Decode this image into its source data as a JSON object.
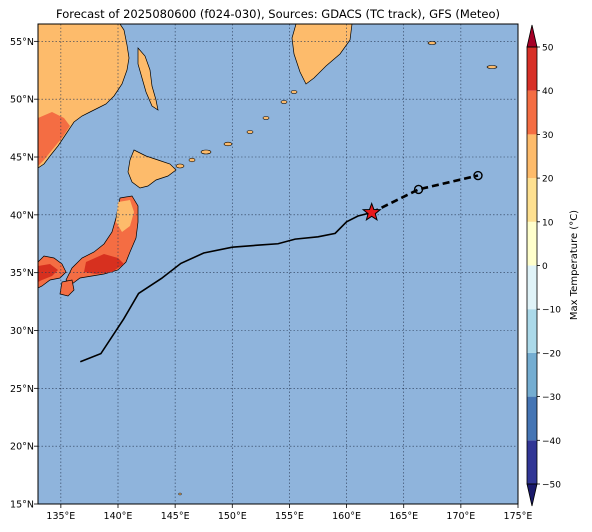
{
  "title": "Forecast of 2025080600 (f024-030), Sources: GDACS (TC track), GFS (Meteo)",
  "map": {
    "lon_range": [
      133,
      175
    ],
    "lat_range": [
      15,
      56.5
    ],
    "lon_ticks": [
      135,
      140,
      145,
      150,
      155,
      160,
      165,
      170,
      175
    ],
    "lon_tick_labels": [
      "135°E",
      "140°E",
      "145°E",
      "150°E",
      "155°E",
      "160°E",
      "165°E",
      "170°E",
      "175°E"
    ],
    "lat_ticks": [
      15,
      20,
      25,
      30,
      35,
      40,
      45,
      50,
      55
    ],
    "lat_tick_labels": [
      "15°N",
      "20°N",
      "25°N",
      "30°N",
      "35°N",
      "40°N",
      "45°N",
      "50°N",
      "55°N"
    ],
    "grid": true,
    "ocean_color": "#8fb4dc",
    "land_temperature_colors": {
      "0_10": "#ffffcc",
      "10_20": "#fdbb6b",
      "20_30": "#f46d43",
      "30_40": "#d7301f"
    }
  },
  "track": {
    "past": [
      [
        136.7,
        27.3
      ],
      [
        138.5,
        28.0
      ],
      [
        140.5,
        31.0
      ],
      [
        141.8,
        33.2
      ],
      [
        143.8,
        34.5
      ],
      [
        145.5,
        35.8
      ],
      [
        147.5,
        36.7
      ],
      [
        150.0,
        37.2
      ],
      [
        152.5,
        37.4
      ],
      [
        154.0,
        37.5
      ],
      [
        155.5,
        37.9
      ],
      [
        157.5,
        38.1
      ],
      [
        159.0,
        38.4
      ],
      [
        160.0,
        39.4
      ],
      [
        161.0,
        39.9
      ],
      [
        162.2,
        40.2
      ]
    ],
    "current": [
      162.2,
      40.2
    ],
    "forecast": [
      [
        162.2,
        40.2
      ],
      [
        166.3,
        42.2
      ],
      [
        171.5,
        43.4
      ]
    ],
    "forecast_points": [
      [
        166.3,
        42.2
      ],
      [
        171.5,
        43.4
      ]
    ],
    "current_marker_color": "#e8191c"
  },
  "colorbar": {
    "label": "Max Temperature (°C)",
    "ticks": [
      -50,
      -40,
      -30,
      -20,
      -10,
      0,
      10,
      20,
      30,
      40,
      50
    ],
    "tick_labels": [
      "−50",
      "−40",
      "−30",
      "−20",
      "−10",
      "0",
      "10",
      "20",
      "30",
      "40",
      "50"
    ],
    "colors": [
      "#313695",
      "#4575b4",
      "#74add1",
      "#abd9e9",
      "#e0f3f8",
      "#ffffcc",
      "#fee090",
      "#fdbb6b",
      "#f46d43",
      "#d73027"
    ],
    "extend_low_color": "#1a1a6b",
    "extend_high_color": "#a50026"
  }
}
